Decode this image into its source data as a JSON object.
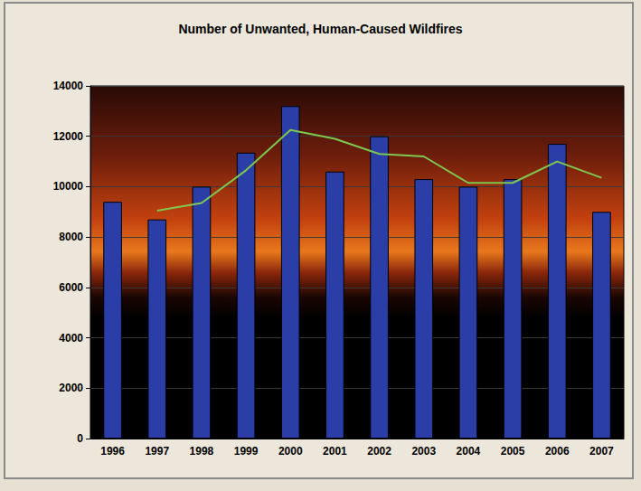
{
  "chart_data": {
    "type": "bar",
    "title": "Number of Unwanted, Human-Caused Wildfires",
    "categories": [
      "1996",
      "1997",
      "1998",
      "1999",
      "2000",
      "2001",
      "2002",
      "2003",
      "2004",
      "2005",
      "2006",
      "2007"
    ],
    "series": [
      {
        "type": "bar",
        "color": "#2b3ea8",
        "values": [
          9400,
          8700,
          10000,
          11350,
          13200,
          10600,
          12000,
          10300,
          10000,
          10300,
          11700,
          9000
        ]
      },
      {
        "type": "line",
        "color": "#7ec850",
        "values": [
          null,
          9050,
          9350,
          10650,
          12250,
          11900,
          11300,
          11200,
          10150,
          10150,
          11000,
          10350
        ]
      }
    ],
    "ylim": [
      0,
      14000
    ],
    "yticks": [
      0,
      2000,
      4000,
      6000,
      8000,
      10000,
      12000,
      14000
    ],
    "grid": true
  }
}
